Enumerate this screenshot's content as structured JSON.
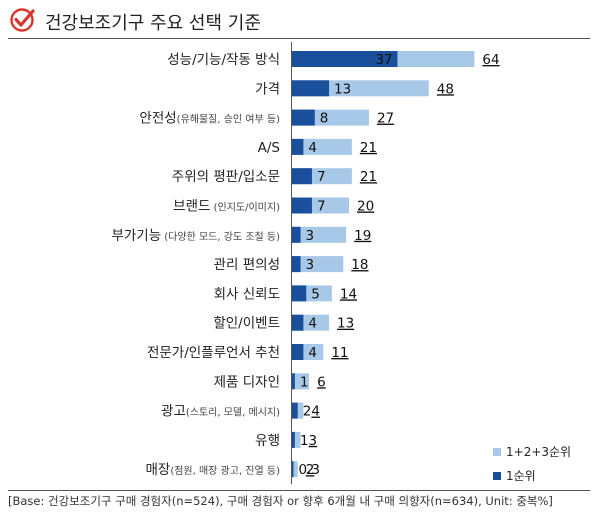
{
  "title": "건강보조기구 주요 선택 기준",
  "footnote": "[Base: 건강보조기구 구매 경험자(n=524), 구매 경험자 or 향후 6개월 내 구매 의향자(n=634), Unit: 중복%]",
  "colors": {
    "first_rank": "#1a4f9c",
    "total_rank": "#a8c8e8",
    "check": "#d9342b"
  },
  "chart_data": {
    "type": "bar",
    "orientation": "horizontal",
    "stacked": "overlay",
    "categories": [
      {
        "label": "성능/기능/작동 방식",
        "note": ""
      },
      {
        "label": "가격",
        "note": ""
      },
      {
        "label": "안전성",
        "note": "(유해물질, 승인 여부 등)"
      },
      {
        "label": "A/S",
        "note": ""
      },
      {
        "label": "주위의 평판/입소문",
        "note": ""
      },
      {
        "label": "브랜드",
        "note": " (인지도/이미지)"
      },
      {
        "label": "부가기능",
        "note": " (다양한 모드, 강도 조절 등)"
      },
      {
        "label": "관리 편의성",
        "note": ""
      },
      {
        "label": "회사 신뢰도",
        "note": ""
      },
      {
        "label": "할인/이벤트",
        "note": ""
      },
      {
        "label": "전문가/인플루언서 추천",
        "note": ""
      },
      {
        "label": "제품 디자인",
        "note": ""
      },
      {
        "label": "광고",
        "note": "(스토리, 모델, 메시지)"
      },
      {
        "label": "유행",
        "note": ""
      },
      {
        "label": "매장",
        "note": "(점원, 매장 광고, 진열 등)"
      }
    ],
    "series": [
      {
        "name": "1+2+3순위",
        "values": [
          64,
          48,
          27,
          21,
          21,
          20,
          19,
          18,
          14,
          13,
          11,
          6,
          4,
          3,
          2
        ]
      },
      {
        "name": "1순위",
        "values": [
          37,
          13,
          8,
          4,
          7,
          7,
          3,
          3,
          5,
          4,
          4,
          1,
          2,
          1,
          0.3
        ]
      }
    ],
    "xlim": [
      0,
      100
    ],
    "legend": "bottom-right"
  }
}
